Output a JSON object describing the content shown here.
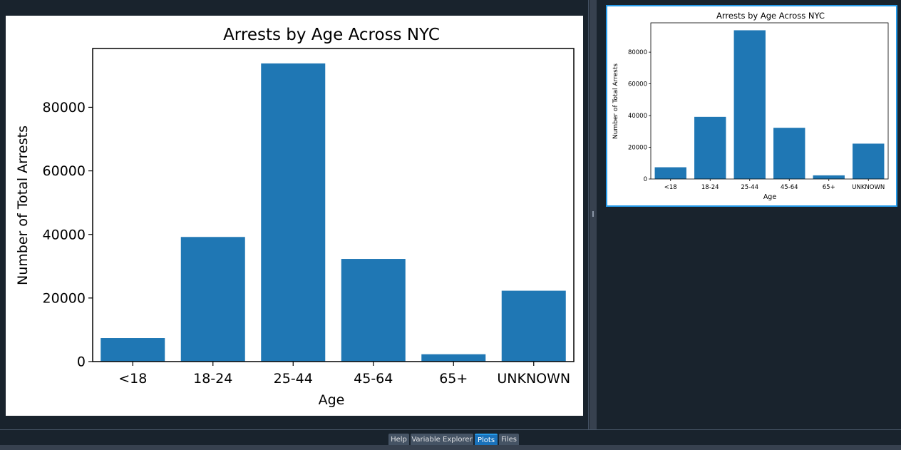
{
  "tabs": [
    {
      "label": "Help",
      "active": false
    },
    {
      "label": "Variable Explorer",
      "active": false
    },
    {
      "label": "Plots",
      "active": true
    },
    {
      "label": "Files",
      "active": false
    }
  ],
  "colors": {
    "bar": "#1f77b4",
    "background": "#19232d",
    "accent": "#259ae9"
  },
  "chart_data": [
    {
      "type": "bar",
      "title": "Arrests by Age Across NYC",
      "xlabel": "Age",
      "ylabel": "Number of Total Arrests",
      "categories": [
        "<18",
        "18-24",
        "25-44",
        "45-64",
        "65+",
        "UNKNOWN"
      ],
      "values": [
        7400,
        39200,
        93800,
        32300,
        2300,
        22300
      ],
      "yticks": [
        0,
        20000,
        40000,
        60000,
        80000
      ],
      "ylim": [
        0,
        98500
      ],
      "grid": false
    },
    {
      "type": "bar",
      "title": "Arrests by Age Across NYC",
      "xlabel": "Age",
      "ylabel": "Number of Total Arrests",
      "categories": [
        "<18",
        "18-24",
        "25-44",
        "45-64",
        "65+",
        "UNKNOWN"
      ],
      "values": [
        7400,
        39200,
        93800,
        32300,
        2300,
        22300
      ],
      "yticks": [
        0,
        20000,
        40000,
        60000,
        80000
      ],
      "ylim": [
        0,
        98500
      ],
      "grid": false
    }
  ]
}
